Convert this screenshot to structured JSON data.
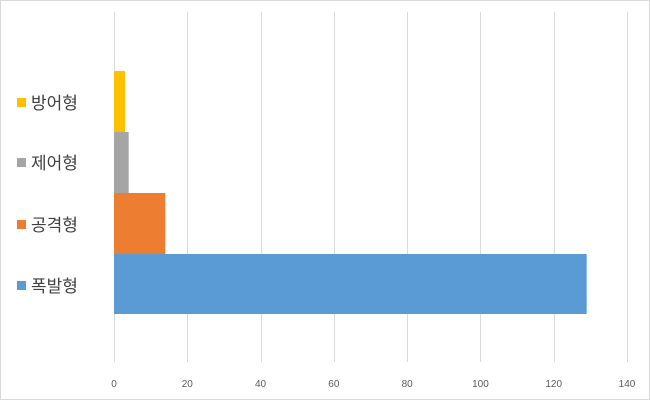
{
  "chart_data": {
    "type": "bar",
    "orientation": "horizontal",
    "stacked": true,
    "title": "",
    "xlabel": "",
    "ylabel": "",
    "xlim": [
      0,
      140
    ],
    "xticks": [
      0,
      20,
      40,
      60,
      80,
      100,
      120,
      140
    ],
    "grid": "vertical",
    "legend_position": "left",
    "series": [
      {
        "name": "폭발형",
        "value": 129,
        "color": "#5b9bd5"
      },
      {
        "name": "공격형",
        "value": 14,
        "color": "#ed7d31"
      },
      {
        "name": "제어형",
        "value": 4,
        "color": "#a5a5a5"
      },
      {
        "name": "방어형",
        "value": 3,
        "color": "#ffc000"
      }
    ]
  }
}
